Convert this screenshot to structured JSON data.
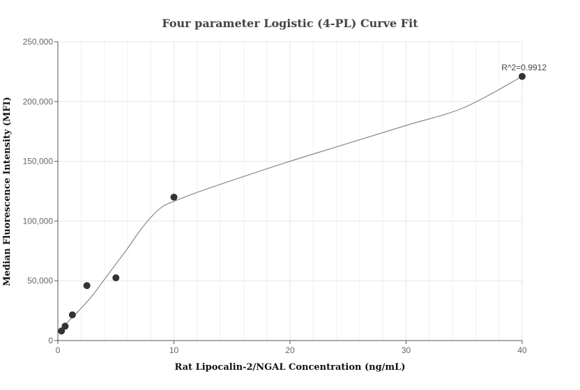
{
  "chart_data": {
    "type": "scatter",
    "title": "Four parameter Logistic (4-PL) Curve Fit",
    "xlabel": "Rat Lipocalin-2/NGAL Concentration (ng/mL)",
    "ylabel": "Median Fluorescence Intensity (MFI)",
    "xlim": [
      0,
      40
    ],
    "ylim": [
      0,
      250000
    ],
    "x_ticks": [
      0,
      10,
      20,
      30,
      40
    ],
    "y_ticks": [
      0,
      50000,
      100000,
      150000,
      200000,
      250000
    ],
    "x_tick_labels": [
      "0",
      "10",
      "20",
      "30",
      "40"
    ],
    "y_tick_labels": [
      "0",
      "50,000",
      "100,000",
      "150,000",
      "200,000",
      "250,000"
    ],
    "grid": true,
    "points": [
      {
        "x": 0.3125,
        "y": 8000
      },
      {
        "x": 0.625,
        "y": 12000
      },
      {
        "x": 1.25,
        "y": 21500
      },
      {
        "x": 2.5,
        "y": 46000
      },
      {
        "x": 5,
        "y": 52500
      },
      {
        "x": 10,
        "y": 120000
      },
      {
        "x": 40,
        "y": 221000
      }
    ],
    "fit_curve": {
      "x": [
        0.3125,
        1,
        2,
        3,
        4,
        5,
        6,
        7,
        8,
        9,
        10,
        12,
        15,
        20,
        25,
        30,
        35,
        40
      ],
      "y": [
        10000,
        17000,
        27000,
        38000,
        51000,
        64000,
        77000,
        91000,
        103000,
        112000,
        116500,
        124000,
        134000,
        150000,
        165000,
        180000,
        195000,
        221000
      ]
    },
    "annotation": "R^2=0.9912",
    "colors": {
      "points": "#333333",
      "curve": "#888888",
      "grid": "#e5e5e5",
      "axis": "#555555"
    }
  }
}
